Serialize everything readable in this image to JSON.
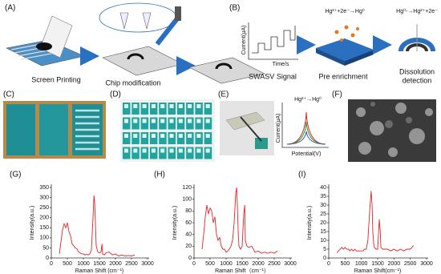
{
  "panels": {
    "a": {
      "label": "(A)",
      "step1": "Screen Printing",
      "step2": "Chip modification"
    },
    "b": {
      "label": "(B)",
      "reaction1": "Hg²⁺+2e⁻→Hg⁰",
      "reaction2": "Hg⁰-→Hg²⁺+2e⁻",
      "ylabel": "Current(μA)",
      "xlabel": "Time/s",
      "step1": "SWASV Signal",
      "step2": "Pre enrichment",
      "step3a": "Dissolution",
      "step3b": "detection"
    },
    "c": {
      "label": "(C)"
    },
    "d": {
      "label": "(D)"
    },
    "e": {
      "label": "(E)",
      "reaction": "Hg²⁺→Hg⁰",
      "ylabel": "Current(μA)",
      "xlabel": "Potential(V)"
    },
    "f": {
      "label": "(F)"
    }
  },
  "chart_data": [
    {
      "type": "line",
      "panel_label": "(G)",
      "ylabel": "Intensity(a.u.)",
      "xlabel": "Raman Shift (cm⁻¹)",
      "color": "#e02424",
      "x": [
        250,
        300,
        350,
        400,
        450,
        500,
        550,
        600,
        650,
        700,
        750,
        800,
        850,
        900,
        950,
        1000,
        1050,
        1100,
        1150,
        1200,
        1250,
        1300,
        1330,
        1350,
        1380,
        1400,
        1450,
        1500,
        1550,
        1580,
        1600,
        1650,
        1700,
        1800,
        1900,
        2000,
        2100,
        2200,
        2300,
        2400,
        2500,
        2600
      ],
      "values": [
        20,
        80,
        140,
        170,
        150,
        175,
        130,
        110,
        70,
        60,
        50,
        45,
        30,
        25,
        20,
        20,
        15,
        18,
        15,
        20,
        40,
        200,
        310,
        280,
        150,
        60,
        30,
        25,
        30,
        70,
        20,
        15,
        25,
        30,
        15,
        20,
        10,
        15,
        10,
        12,
        10,
        15
      ],
      "xlim": [
        0,
        3000
      ],
      "xticks": [
        0,
        500,
        1000,
        1500,
        2000,
        2500,
        3000
      ],
      "ylim": [
        0,
        350
      ],
      "yticks": [
        0,
        50,
        100,
        150,
        200,
        250,
        300,
        350
      ]
    },
    {
      "type": "line",
      "panel_label": "(H)",
      "ylabel": "Intensity(a.u.)",
      "xlabel": "Raman Shift（cm⁻¹）",
      "color": "#e02424",
      "x": [
        250,
        300,
        350,
        400,
        450,
        500,
        550,
        600,
        650,
        700,
        750,
        800,
        850,
        900,
        950,
        1000,
        1050,
        1100,
        1150,
        1200,
        1250,
        1300,
        1330,
        1350,
        1380,
        1400,
        1450,
        1500,
        1550,
        1580,
        1600,
        1650,
        1700,
        1800,
        1900,
        2000,
        2100,
        2200,
        2300,
        2400,
        2500,
        2600
      ],
      "values": [
        15,
        40,
        70,
        90,
        75,
        85,
        80,
        60,
        70,
        40,
        30,
        35,
        20,
        15,
        15,
        10,
        12,
        15,
        20,
        30,
        60,
        110,
        120,
        90,
        40,
        20,
        15,
        20,
        75,
        90,
        30,
        20,
        18,
        20,
        10,
        12,
        8,
        10,
        8,
        10,
        8,
        12
      ],
      "xlim": [
        0,
        3000
      ],
      "xticks": [
        0,
        500,
        1000,
        1500,
        2000,
        2500,
        3000
      ],
      "ylim": [
        0,
        120
      ],
      "yticks": [
        0,
        20,
        40,
        60,
        80,
        100,
        120
      ]
    },
    {
      "type": "line",
      "panel_label": "(I)",
      "ylabel": "Intensity(a.u.)",
      "xlabel": "Raman Shift(cm⁻¹)",
      "color": "#e02424",
      "x": [
        250,
        300,
        350,
        400,
        450,
        500,
        550,
        600,
        650,
        700,
        750,
        800,
        850,
        900,
        950,
        1000,
        1050,
        1100,
        1150,
        1200,
        1250,
        1300,
        1330,
        1350,
        1380,
        1400,
        1450,
        1500,
        1550,
        1580,
        1600,
        1650,
        1700,
        1800,
        1900,
        2000,
        2100,
        2200,
        2300,
        2400,
        2500,
        2600
      ],
      "values": [
        3,
        4,
        5,
        6,
        5,
        6,
        5,
        5,
        4,
        5,
        4,
        5,
        4,
        4,
        4,
        4,
        4,
        5,
        5,
        10,
        25,
        38,
        30,
        15,
        8,
        6,
        5,
        5,
        22,
        15,
        6,
        5,
        5,
        5,
        4,
        5,
        4,
        5,
        4,
        5,
        5,
        7
      ],
      "xlim": [
        0,
        3000
      ],
      "xticks": [
        0,
        500,
        1000,
        1500,
        2000,
        2500,
        3000
      ],
      "ylim": [
        0,
        40
      ],
      "yticks": [
        0,
        5,
        10,
        15,
        20,
        25,
        30,
        35,
        40
      ]
    }
  ]
}
